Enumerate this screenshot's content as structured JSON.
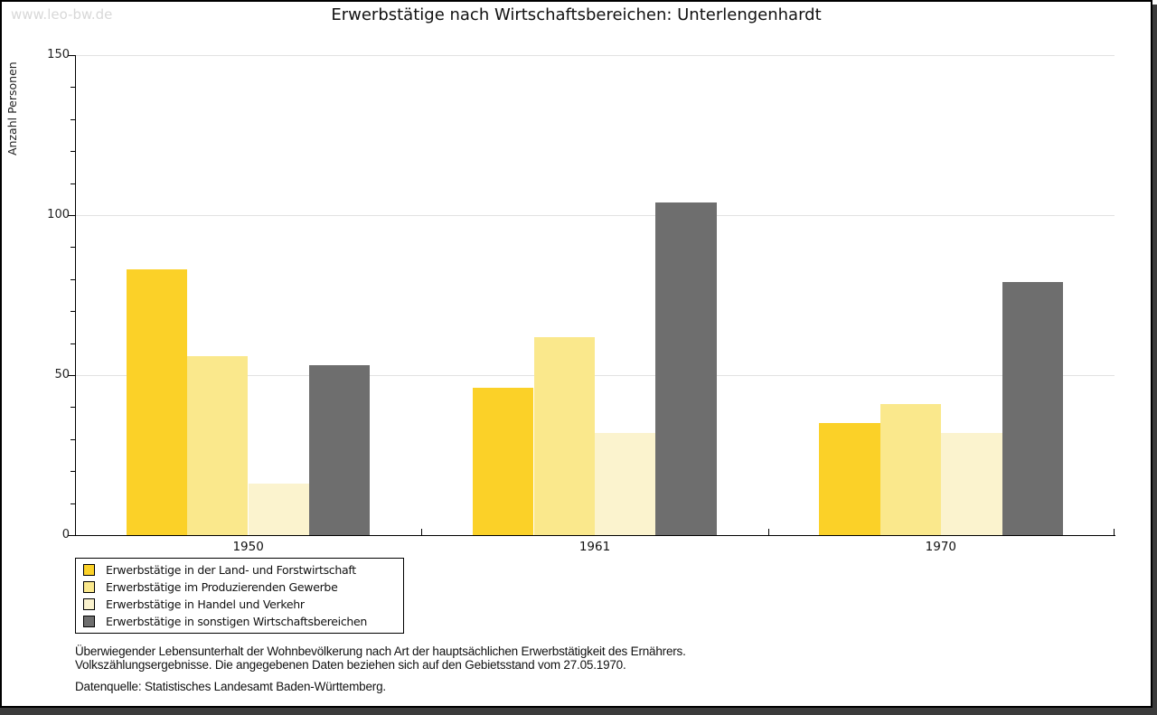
{
  "window": {
    "watermark": "www.leo-bw.de",
    "title": "Erwerbstätige nach Wirtschaftsbereichen: Unterlengenhardt"
  },
  "chart_data": {
    "type": "bar",
    "title": "Erwerbstätige nach Wirtschaftsbereichen: Unterlengenhardt",
    "categories": [
      "1950",
      "1961",
      "1970"
    ],
    "series": [
      {
        "name": "Erwerbstätige in der Land- und Forstwirtschaft",
        "color": "#FBD128",
        "values": [
          83,
          46,
          35
        ]
      },
      {
        "name": "Erwerbstätige im Produzierenden Gewerbe",
        "color": "#FAE88C",
        "values": [
          56,
          62,
          41
        ]
      },
      {
        "name": "Erwerbstätige in Handel und Verkehr",
        "color": "#FBF3CE",
        "values": [
          16,
          32,
          32
        ]
      },
      {
        "name": "Erwerbstätige in sonstigen Wirtschaftsbereichen",
        "color": "#6E6E6E",
        "values": [
          53,
          104,
          79
        ]
      }
    ],
    "xlabel": "",
    "ylabel": "Anzahl Personen",
    "ylim": [
      0,
      150
    ],
    "yticks": [
      0,
      50,
      100,
      150
    ],
    "ytick_minor_step": 10,
    "grid": "horizontal-major",
    "legend_position": "bottom-left",
    "gridline_color": "#E2E2E2",
    "axis_color": "#000000"
  },
  "footnotes": {
    "line1": "Überwiegender Lebensunterhalt der Wohnbevölkerung nach Art der hauptsächlichen Erwerbstätigkeit des Ernährers.",
    "line2": "Volkszählungsergebnisse. Die angegebenen Daten beziehen sich auf den Gebietsstand vom 27.05.1970.",
    "source": "Datenquelle: Statistisches Landesamt Baden-Württemberg."
  }
}
